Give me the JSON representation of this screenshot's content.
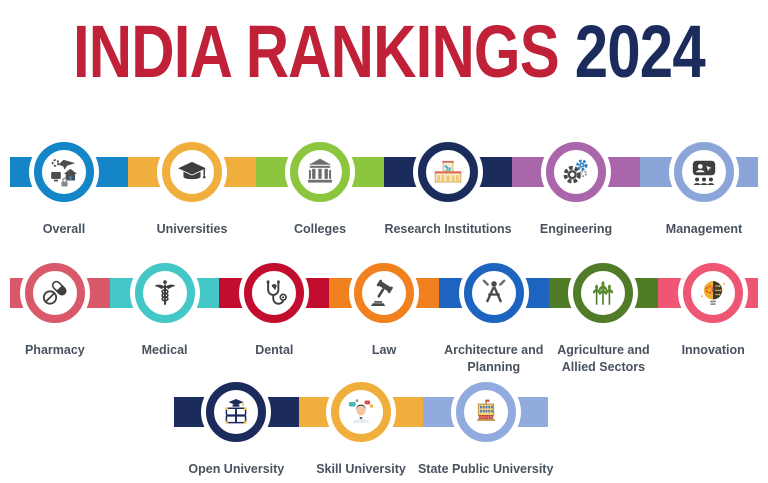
{
  "title": {
    "main": "INDIA RANKINGS",
    "year": "2024"
  },
  "colors": {
    "title_main": "#C02138",
    "title_year": "#1B2B5C",
    "label_text": "#48525F"
  },
  "rows": [
    {
      "name": "rankings-row-1",
      "items": [
        {
          "label": "Overall",
          "color": "#1486C8",
          "icon": "overall-collage-icon"
        },
        {
          "label": "Universities",
          "color": "#F0AF3C",
          "icon": "graduation-cap-icon"
        },
        {
          "label": "Colleges",
          "color": "#8CC63E",
          "icon": "college-building-icon"
        },
        {
          "label": "Research Institutions",
          "color": "#1B2B5C",
          "icon": "research-lab-icon"
        },
        {
          "label": "Engineering",
          "color": "#A966AB",
          "icon": "gears-icon"
        },
        {
          "label": "Management",
          "color": "#8CA5D8",
          "icon": "presentation-board-icon"
        }
      ]
    },
    {
      "name": "rankings-row-2",
      "items": [
        {
          "label": "Pharmacy",
          "color": "#D9596B",
          "icon": "pills-icon"
        },
        {
          "label": "Medical",
          "color": "#43C7C7",
          "icon": "caduceus-icon"
        },
        {
          "label": "Dental",
          "color": "#C20D2E",
          "icon": "tooth-stethoscope-icon"
        },
        {
          "label": "Law",
          "color": "#F1801F",
          "icon": "gavel-icon"
        },
        {
          "label": "Architecture and Planning",
          "color": "#1C64C0",
          "icon": "drafting-compass-icon"
        },
        {
          "label": "Agriculture and Allied Sectors",
          "color": "#507C28",
          "icon": "wheat-icon"
        },
        {
          "label": "Innovation",
          "color": "#EE5674",
          "icon": "lightbulb-gear-icon"
        }
      ]
    },
    {
      "name": "rankings-row-3",
      "items": [
        {
          "label": "Open University",
          "color": "#1B2B5C",
          "icon": "books-cap-icon"
        },
        {
          "label": "Skill University",
          "color": "#F0AF3C",
          "icon": "skill-person-icon"
        },
        {
          "label": "State Public University",
          "color": "#92ABDE",
          "icon": "public-building-icon"
        }
      ]
    }
  ]
}
